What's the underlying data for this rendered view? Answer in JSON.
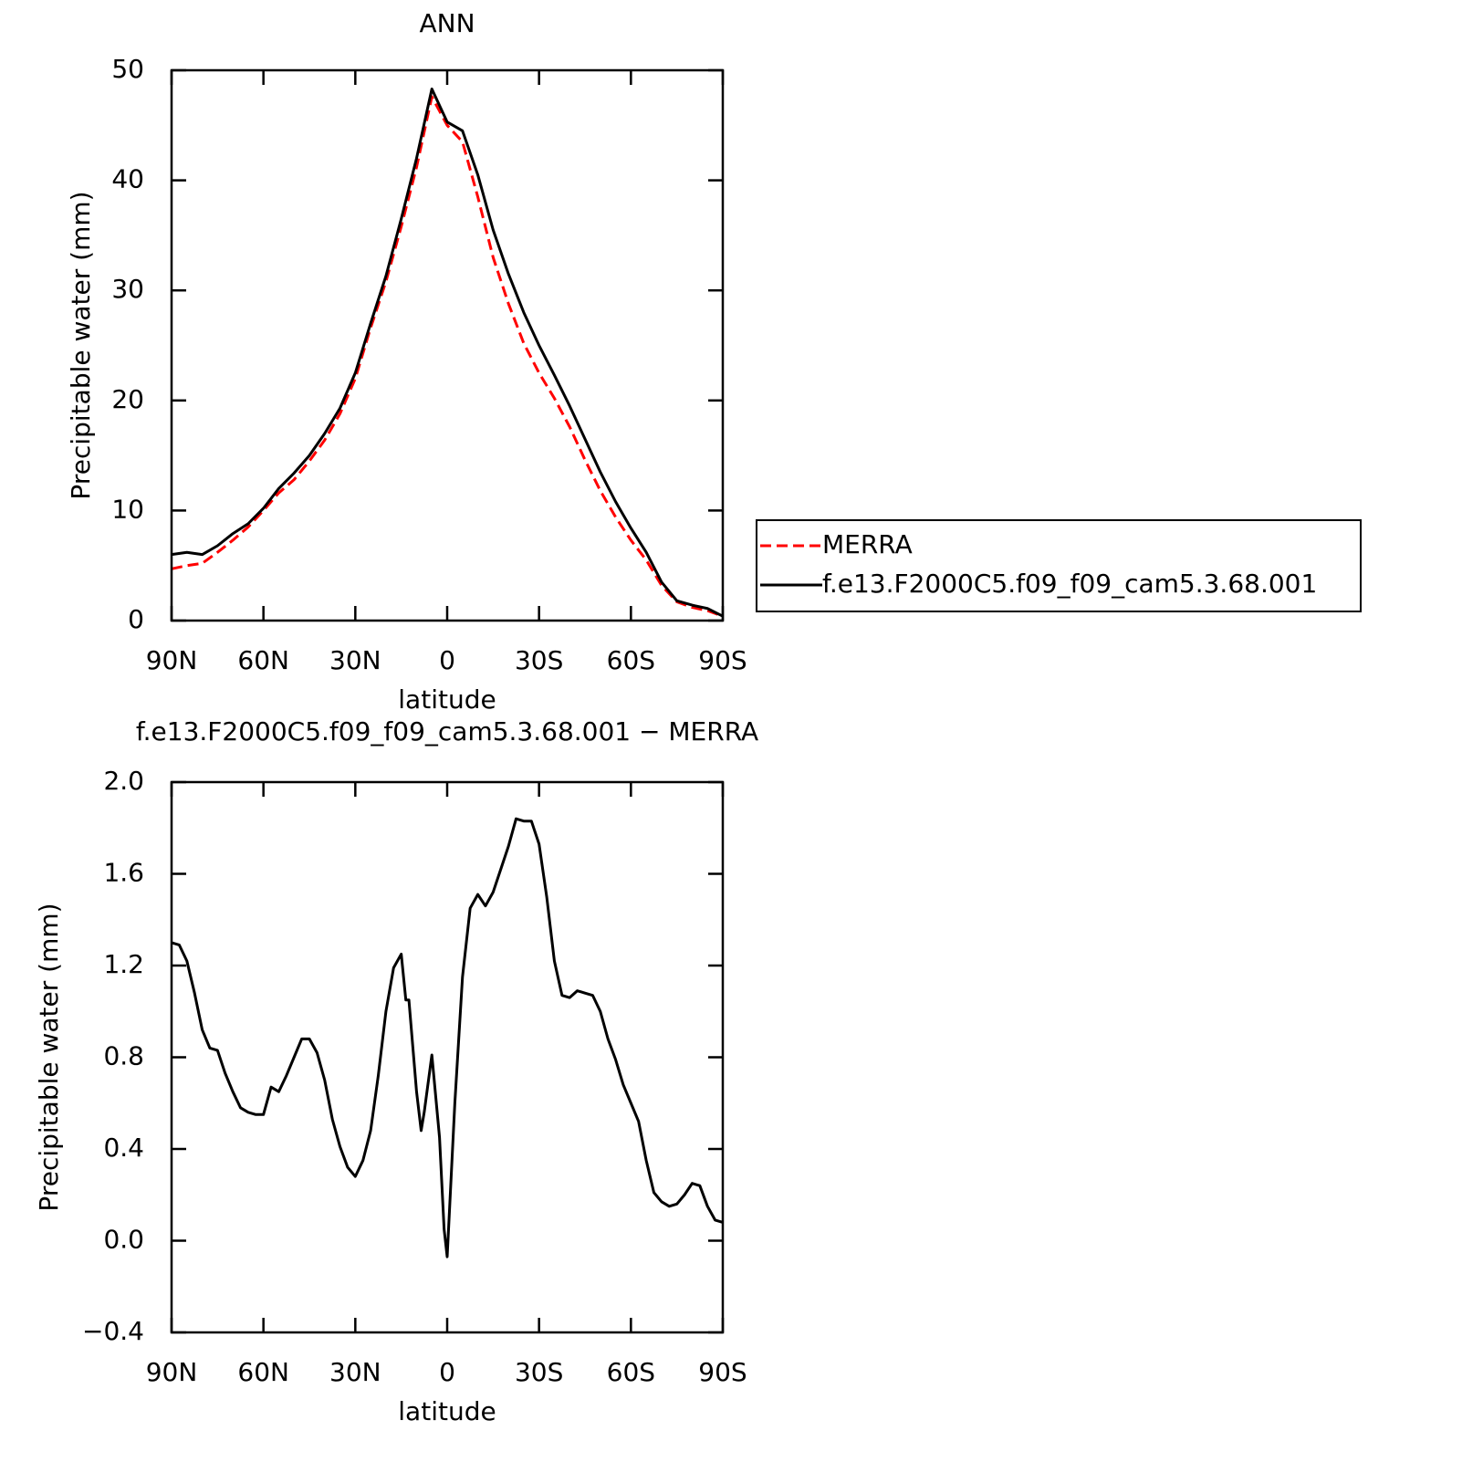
{
  "chart_data": [
    {
      "type": "line",
      "title": "ANN",
      "xlabel": "latitude",
      "ylabel": "Precipitable water (mm)",
      "x": [
        90,
        85,
        80,
        75,
        70,
        65,
        60,
        55,
        50,
        45,
        40,
        35,
        30,
        25,
        20,
        15,
        10,
        5,
        0,
        -5,
        -10,
        -15,
        -20,
        -25,
        -30,
        -35,
        -40,
        -45,
        -50,
        -55,
        -60,
        -65,
        -70,
        -75,
        -80,
        -85,
        -90
      ],
      "series": [
        {
          "name": "MERRA",
          "color": "#ff0000",
          "dash": "dashed",
          "values": [
            4.7,
            5.0,
            5.2,
            6.2,
            7.3,
            8.5,
            10.0,
            11.6,
            12.8,
            14.5,
            16.4,
            18.8,
            22.0,
            26.6,
            30.8,
            35.8,
            41.2,
            47.6,
            45.0,
            43.5,
            38.5,
            33.0,
            28.8,
            25.2,
            22.5,
            20.2,
            17.6,
            14.6,
            11.8,
            9.4,
            7.3,
            5.5,
            3.2,
            1.7,
            1.2,
            0.9,
            0.4
          ]
        },
        {
          "name": "f.e13.F2000C5.f09_f09_cam5.3.68.001",
          "color": "#000000",
          "dash": "solid",
          "values": [
            6.0,
            6.2,
            6.0,
            6.8,
            7.9,
            8.8,
            10.2,
            12.0,
            13.4,
            15.0,
            17.0,
            19.3,
            22.5,
            27.0,
            31.3,
            36.5,
            42.0,
            48.3,
            45.3,
            44.5,
            40.5,
            35.5,
            31.5,
            28.0,
            25.0,
            22.3,
            19.5,
            16.5,
            13.5,
            10.8,
            8.4,
            6.2,
            3.5,
            1.8,
            1.4,
            1.1,
            0.4
          ]
        }
      ],
      "xlim": [
        90,
        -90
      ],
      "xticks": [
        {
          "value": 90,
          "label": "90N"
        },
        {
          "value": 60,
          "label": "60N"
        },
        {
          "value": 30,
          "label": "30N"
        },
        0,
        {
          "value": -30,
          "label": "30S"
        },
        {
          "value": -60,
          "label": "60S"
        },
        {
          "value": -90,
          "label": "90S"
        }
      ],
      "ylim": [
        0,
        50
      ],
      "yticks": [
        0,
        10,
        20,
        30,
        40,
        50
      ],
      "legend": "right"
    },
    {
      "type": "line",
      "title": "f.e13.F2000C5.f09_f09_cam5.3.68.001 − MERRA",
      "xlabel": "latitude",
      "ylabel": "Precipitable water (mm)",
      "x": [
        90,
        87.5,
        85,
        82.5,
        80,
        77.5,
        75,
        72.5,
        70,
        67.5,
        65,
        62.5,
        60,
        57.5,
        55,
        52.5,
        50,
        47.5,
        45,
        42.5,
        40,
        37.5,
        35,
        32.5,
        30,
        27.5,
        25,
        22.5,
        20,
        17.5,
        15,
        13.5,
        12.5,
        10,
        8.5,
        7.5,
        5,
        2.5,
        1,
        0,
        -2.5,
        -5,
        -7.5,
        -10,
        -12.5,
        -15,
        -17.5,
        -20,
        -22.5,
        -25,
        -27.5,
        -30,
        -32.5,
        -35,
        -37.5,
        -40,
        -42.5,
        -45,
        -47.5,
        -50,
        -52.5,
        -55,
        -57.5,
        -60,
        -62.5,
        -65,
        -67.5,
        -70,
        -72.5,
        -75,
        -77.5,
        -80,
        -82.5,
        -85,
        -87.5,
        -90
      ],
      "series": [
        {
          "name": "f.e13.F2000C5.f09_f09_cam5.3.68.001 − MERRA",
          "color": "#000000",
          "dash": "solid",
          "values": [
            1.3,
            1.29,
            1.22,
            1.08,
            0.92,
            0.84,
            0.83,
            0.73,
            0.65,
            0.58,
            0.56,
            0.55,
            0.55,
            0.67,
            0.65,
            0.72,
            0.8,
            0.88,
            0.88,
            0.82,
            0.7,
            0.53,
            0.41,
            0.32,
            0.28,
            0.35,
            0.48,
            0.72,
            1.0,
            1.19,
            1.25,
            1.05,
            1.05,
            0.65,
            0.48,
            0.56,
            0.81,
            0.45,
            0.05,
            -0.07,
            0.6,
            1.15,
            1.45,
            1.51,
            1.46,
            1.52,
            1.62,
            1.72,
            1.84,
            1.83,
            1.83,
            1.73,
            1.5,
            1.22,
            1.07,
            1.06,
            1.09,
            1.08,
            1.07,
            1.0,
            0.88,
            0.79,
            0.68,
            0.6,
            0.52,
            0.35,
            0.21,
            0.17,
            0.15,
            0.16,
            0.2,
            0.25,
            0.24,
            0.15,
            0.09,
            0.08
          ]
        }
      ],
      "xlim": [
        90,
        -90
      ],
      "xticks": [
        {
          "value": 90,
          "label": "90N"
        },
        {
          "value": 60,
          "label": "60N"
        },
        {
          "value": 30,
          "label": "30N"
        },
        0,
        {
          "value": -30,
          "label": "30S"
        },
        {
          "value": -60,
          "label": "60S"
        },
        {
          "value": -90,
          "label": "90S"
        }
      ],
      "ylim": [
        -0.4,
        2.0
      ],
      "yticks": [
        {
          "value": -0.4,
          "label": "−0.4"
        },
        {
          "value": 0,
          "label": "0.0"
        },
        0.4,
        0.8,
        1.2,
        1.6,
        {
          "value": 2.0,
          "label": "2.0"
        }
      ]
    }
  ]
}
